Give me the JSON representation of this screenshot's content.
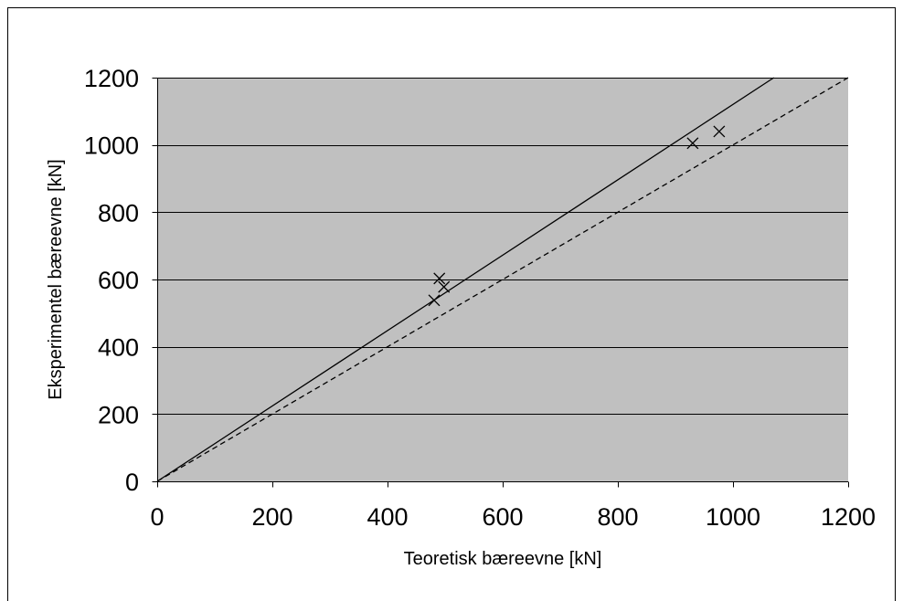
{
  "chart_data": {
    "type": "scatter",
    "xlabel": "Teoretisk bæreevne [kN]",
    "ylabel": "Eksperimentel bæreevne [kN]",
    "xlim": [
      0,
      1200
    ],
    "ylim": [
      0,
      1200
    ],
    "xticks": [
      0,
      200,
      400,
      600,
      800,
      1000,
      1200
    ],
    "yticks": [
      0,
      200,
      400,
      600,
      800,
      1000,
      1200
    ],
    "grid": "horizontal",
    "legend": "none",
    "series": [
      {
        "type": "line",
        "style": "solid",
        "points": [
          [
            0,
            0
          ],
          [
            1071,
            1200
          ]
        ]
      },
      {
        "type": "line",
        "style": "dashed",
        "points": [
          [
            0,
            0
          ],
          [
            1200,
            1200
          ]
        ]
      },
      {
        "type": "scatter",
        "marker": "x",
        "points": [
          [
            481,
            538
          ],
          [
            490,
            603
          ],
          [
            498,
            578
          ],
          [
            930,
            1005
          ],
          [
            976,
            1040
          ]
        ]
      }
    ]
  },
  "colors": {
    "page_background": "#ffffff",
    "plot_background": "#c0c0c0",
    "foreground": "#000000"
  }
}
